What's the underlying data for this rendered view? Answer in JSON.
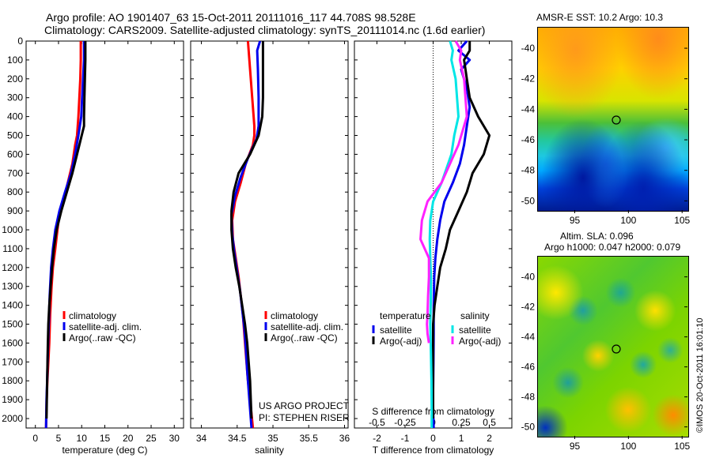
{
  "header": {
    "line1": "Argo profile: AO 1901407_63 15-Oct-2011 20111016_117 44.708S 98.528E",
    "line2": "Climatology: CARS2009. Satellite-adjusted climatology: synTS_20111014.nc (1.6d earlier)"
  },
  "colors": {
    "red": "#ff0000",
    "blue": "#0000ee",
    "black": "#000000",
    "cyan": "#00e6e6",
    "magenta": "#ff22ff"
  },
  "depth_ticks": [
    "0",
    "100",
    "200",
    "300",
    "400",
    "500",
    "600",
    "700",
    "800",
    "900",
    "1000",
    "1100",
    "1200",
    "1300",
    "1400",
    "1500",
    "1600",
    "1700",
    "1800",
    "1900",
    "2000"
  ],
  "project": {
    "line1": "US ARGO PROJECT",
    "line2": "PI: STEPHEN RISER"
  },
  "credit": "©IMOS 20-Oct-2011 16:01:10",
  "chart_data": [
    {
      "type": "line",
      "id": "temperature",
      "xlabel": "temperature (deg C)",
      "xticks": [
        "0",
        "5",
        "10",
        "15",
        "20",
        "25",
        "30"
      ],
      "xlim": [
        -2,
        32
      ],
      "ylim": [
        0,
        2050
      ],
      "legend": [
        "climatology",
        "satellite-adj. clim.",
        "Argo(..raw -QC)"
      ],
      "series": [
        {
          "name": "climatology",
          "color": "red",
          "x": [
            9.8,
            9.8,
            9.7,
            9.5,
            9.3,
            9.0,
            8.6,
            8.0,
            7.0,
            6.0,
            5.0,
            4.3,
            3.8,
            3.5,
            3.2,
            3.0,
            2.8,
            2.6,
            2.45,
            2.3
          ],
          "y": [
            0,
            100,
            200,
            300,
            400,
            500,
            550,
            650,
            750,
            850,
            950,
            1100,
            1200,
            1300,
            1450,
            1600,
            1700,
            1800,
            1900,
            2050
          ]
        },
        {
          "name": "satellite-adj. clim.",
          "color": "blue",
          "x": [
            10.5,
            10.5,
            10.3,
            10.1,
            9.9,
            9.6,
            9.3,
            8.6,
            7.7,
            6.4,
            5.2,
            4.3,
            3.8,
            3.4,
            3.1,
            2.9,
            2.7,
            2.55,
            2.4,
            2.3
          ],
          "y": [
            0,
            100,
            200,
            300,
            400,
            450,
            500,
            600,
            700,
            800,
            900,
            1000,
            1100,
            1200,
            1350,
            1500,
            1650,
            1800,
            1900,
            2050
          ]
        },
        {
          "name": "Argo(..raw -QC)",
          "color": "black",
          "x": [
            10.8,
            10.8,
            10.7,
            10.6,
            10.5,
            10.5,
            9.0,
            8.0,
            6.8,
            5.6,
            4.6,
            4.0,
            3.6,
            3.3,
            3.0,
            2.8,
            2.7,
            2.55,
            2.4
          ],
          "y": [
            0,
            100,
            200,
            300,
            400,
            450,
            600,
            700,
            800,
            900,
            1000,
            1100,
            1200,
            1300,
            1400,
            1500,
            1600,
            1800,
            2000
          ]
        }
      ]
    },
    {
      "type": "line",
      "id": "salinity",
      "xlabel": "salinity",
      "xticks": [
        "34",
        "34.5",
        "35",
        "35.5",
        "36"
      ],
      "xlim": [
        33.85,
        36.05
      ],
      "ylim": [
        0,
        2050
      ],
      "legend": [
        "climatology",
        "satellite-adj. clim.",
        "Argo(..raw -QC)"
      ],
      "series": [
        {
          "name": "climatology",
          "color": "red",
          "x": [
            34.65,
            34.67,
            34.69,
            34.71,
            34.73,
            34.74,
            34.74,
            34.72,
            34.62,
            34.55,
            34.47,
            34.43,
            34.44,
            34.48,
            34.52,
            34.55,
            34.58,
            34.6,
            34.62,
            34.65,
            34.68,
            34.72
          ],
          "y": [
            0,
            100,
            200,
            300,
            400,
            450,
            500,
            550,
            650,
            750,
            850,
            950,
            1050,
            1150,
            1250,
            1350,
            1450,
            1550,
            1650,
            1800,
            1900,
            2050
          ]
        },
        {
          "name": "satellite-adj. clim.",
          "color": "blue",
          "x": [
            34.82,
            34.78,
            34.79,
            34.8,
            34.8,
            34.8,
            34.77,
            34.65,
            34.55,
            34.47,
            34.42,
            34.43,
            34.46,
            34.5,
            34.54,
            34.57,
            34.6,
            34.62,
            34.64,
            34.67,
            34.7
          ],
          "y": [
            0,
            50,
            150,
            300,
            400,
            450,
            520,
            620,
            720,
            820,
            920,
            1020,
            1120,
            1220,
            1320,
            1420,
            1520,
            1620,
            1750,
            1900,
            2050
          ]
        },
        {
          "name": "Argo(..raw -QC)",
          "color": "black",
          "x": [
            34.86,
            34.86,
            34.86,
            34.86,
            34.85,
            34.8,
            34.68,
            34.52,
            34.45,
            34.42,
            34.42,
            34.44,
            34.48,
            34.53,
            34.57,
            34.61,
            34.64,
            34.68,
            34.7
          ],
          "y": [
            0,
            100,
            200,
            300,
            400,
            500,
            600,
            700,
            800,
            900,
            1000,
            1100,
            1200,
            1300,
            1400,
            1500,
            1600,
            1800,
            2000
          ]
        }
      ]
    },
    {
      "type": "line",
      "id": "difference",
      "xlabel": "T difference from climatology",
      "xlabel_top": "S difference from climatology",
      "xticks": [
        "-2",
        "-1",
        "0",
        "1",
        "2"
      ],
      "xticks_top": [
        "-0.5",
        "-0.25",
        "0",
        "0.25",
        "0.5"
      ],
      "xlim": [
        -2.8,
        2.8
      ],
      "ylim": [
        0,
        2050
      ],
      "legend_title_left": "temperature",
      "legend_title_right": "salinity",
      "legend_left": [
        "satellite",
        "Argo(-adj)"
      ],
      "legend_right": [
        "satellite",
        "Argo(-adj)"
      ],
      "series": [
        {
          "name": "temperature satellite",
          "color": "blue",
          "x": [
            1.2,
            0.9,
            1.3,
            1.0,
            1.2,
            1.3,
            1.2,
            1.1,
            0.95,
            0.7,
            0.4,
            0.25,
            0.15,
            0.08,
            0.04,
            0.02,
            0.02,
            0.01,
            0.0,
            0.0,
            0.02
          ],
          "y": [
            0,
            50,
            100,
            150,
            250,
            350,
            450,
            550,
            650,
            750,
            850,
            950,
            1050,
            1150,
            1250,
            1400,
            1550,
            1700,
            1850,
            1950,
            2050
          ]
        },
        {
          "name": "temperature Argo(-adj)",
          "color": "black",
          "x": [
            1.3,
            1.3,
            1.1,
            1.2,
            1.3,
            1.6,
            2.0,
            1.8,
            1.4,
            1.2,
            0.9,
            0.6,
            0.45,
            0.25,
            0.15,
            0.05,
            0.0,
            0.0,
            0.0
          ],
          "y": [
            0,
            50,
            100,
            200,
            300,
            400,
            500,
            600,
            700,
            800,
            900,
            1000,
            1100,
            1200,
            1300,
            1400,
            1500,
            1700,
            2000
          ]
        },
        {
          "name": "salinity satellite",
          "color": "cyan",
          "x": [
            0.6,
            0.7,
            0.65,
            0.8,
            0.85,
            0.9,
            0.75,
            0.65,
            0.3,
            0.0,
            -0.1,
            -0.12,
            -0.1,
            -0.08,
            -0.08,
            -0.1,
            -0.08,
            -0.06,
            -0.05,
            -0.05
          ],
          "y": [
            0,
            50,
            100,
            200,
            300,
            400,
            500,
            600,
            750,
            850,
            950,
            1050,
            1150,
            1250,
            1350,
            1500,
            1650,
            1800,
            1950,
            2050
          ]
        },
        {
          "name": "salinity Argo(-adj)",
          "color": "magenta",
          "x": [
            0.8,
            1.0,
            0.95,
            1.1,
            1.2,
            0.9,
            0.6,
            0.3,
            -0.2,
            -0.4,
            -0.45,
            -0.15,
            -0.15,
            -0.18,
            -0.2,
            -0.22,
            -0.2,
            -0.15
          ],
          "y": [
            0,
            50,
            100,
            200,
            400,
            550,
            650,
            750,
            850,
            950,
            1050,
            1150,
            1250,
            1350,
            1450,
            1500,
            1550,
            1600
          ]
        }
      ]
    }
  ],
  "maps": {
    "sst": {
      "title": "AMSR-E SST: 10.2 Argo: 10.3",
      "yticks": [
        "-40",
        "-42",
        "-44",
        "-46",
        "-48",
        "-50"
      ],
      "xticks": [
        "95",
        "100",
        "105"
      ]
    },
    "sla": {
      "title1": "Altim. SLA: 0.096",
      "title2": "Argo h1000: 0.047 h2000: 0.079",
      "yticks": [
        "-40",
        "-42",
        "-44",
        "-46",
        "-48",
        "-50"
      ],
      "xticks": [
        "95",
        "100",
        "105"
      ]
    }
  }
}
